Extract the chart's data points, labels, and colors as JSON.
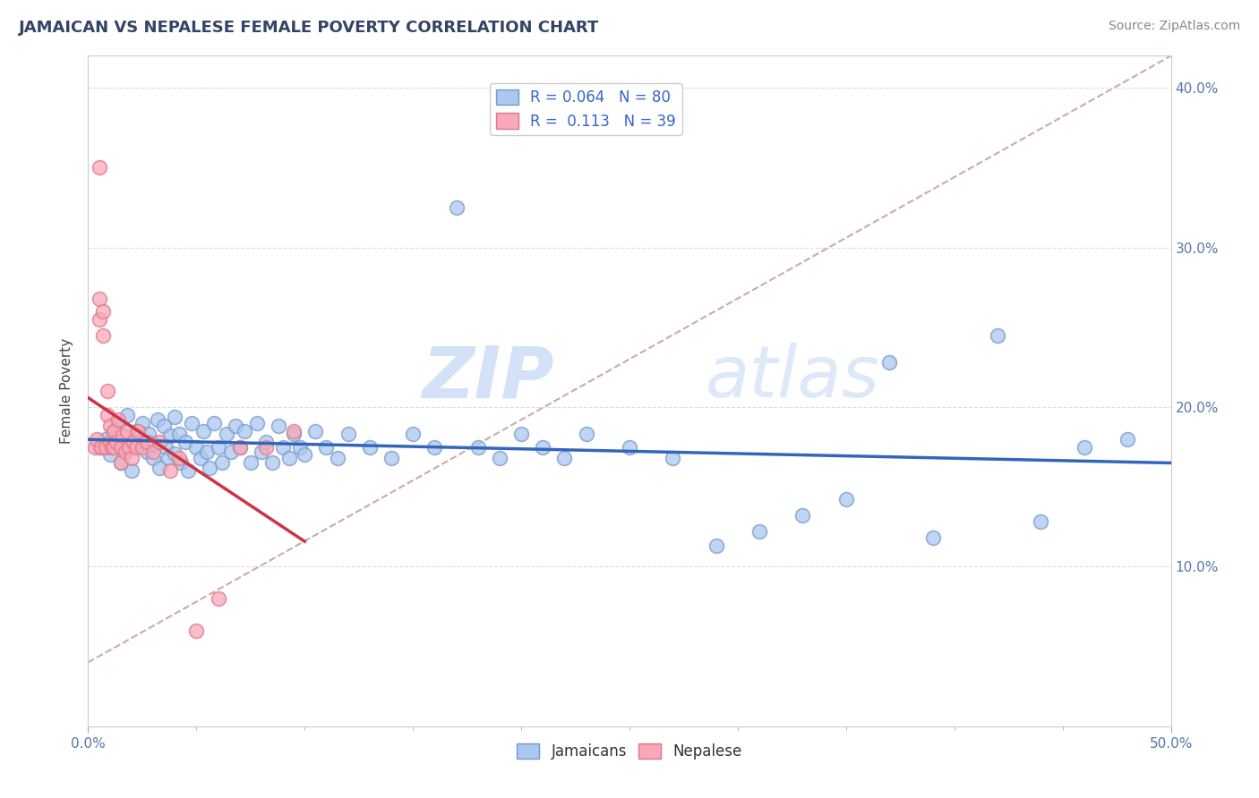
{
  "title": "JAMAICAN VS NEPALESE FEMALE POVERTY CORRELATION CHART",
  "source": "Source: ZipAtlas.com",
  "ylabel": "Female Poverty",
  "xlim": [
    0.0,
    0.5
  ],
  "ylim": [
    0.0,
    0.42
  ],
  "xticks": [
    0.0,
    0.05,
    0.1,
    0.15,
    0.2,
    0.25,
    0.3,
    0.35,
    0.4,
    0.45,
    0.5
  ],
  "yticks": [
    0.0,
    0.1,
    0.2,
    0.3,
    0.4
  ],
  "jamaican_color": "#aac8f0",
  "jamaican_edge": "#7799cc",
  "nepalese_color": "#f8a8b8",
  "nepalese_edge": "#dd7788",
  "trend_jamaican_color": "#3366bb",
  "trend_nepalese_color": "#cc3344",
  "trend_dashed_color": "#ccaaaa",
  "R_jamaican": 0.064,
  "N_jamaican": 80,
  "R_nepalese": 0.113,
  "N_nepalese": 39,
  "watermark_zip": "ZIP",
  "watermark_atlas": "atlas",
  "legend_R_j": "R = 0.064",
  "legend_N_j": "N = 80",
  "legend_R_n": "R =  0.113",
  "legend_N_n": "N = 39",
  "label_jamaicans": "Jamaicans",
  "label_nepalese": "Nepalese",
  "jamaican_x": [
    0.005,
    0.008,
    0.01,
    0.012,
    0.014,
    0.015,
    0.016,
    0.018,
    0.02,
    0.022,
    0.024,
    0.025,
    0.027,
    0.028,
    0.03,
    0.03,
    0.032,
    0.033,
    0.035,
    0.036,
    0.037,
    0.038,
    0.04,
    0.04,
    0.042,
    0.043,
    0.045,
    0.046,
    0.048,
    0.05,
    0.052,
    0.053,
    0.055,
    0.056,
    0.058,
    0.06,
    0.062,
    0.064,
    0.066,
    0.068,
    0.07,
    0.072,
    0.075,
    0.078,
    0.08,
    0.082,
    0.085,
    0.088,
    0.09,
    0.093,
    0.095,
    0.098,
    0.1,
    0.105,
    0.11,
    0.115,
    0.12,
    0.13,
    0.14,
    0.15,
    0.16,
    0.17,
    0.18,
    0.19,
    0.2,
    0.21,
    0.22,
    0.23,
    0.25,
    0.27,
    0.29,
    0.31,
    0.33,
    0.35,
    0.37,
    0.39,
    0.42,
    0.44,
    0.46,
    0.48
  ],
  "jamaican_y": [
    0.175,
    0.18,
    0.17,
    0.185,
    0.19,
    0.165,
    0.175,
    0.195,
    0.16,
    0.185,
    0.178,
    0.19,
    0.172,
    0.183,
    0.177,
    0.168,
    0.192,
    0.162,
    0.188,
    0.175,
    0.168,
    0.182,
    0.194,
    0.171,
    0.183,
    0.165,
    0.178,
    0.16,
    0.19,
    0.175,
    0.168,
    0.185,
    0.172,
    0.162,
    0.19,
    0.175,
    0.165,
    0.183,
    0.172,
    0.188,
    0.175,
    0.185,
    0.165,
    0.19,
    0.172,
    0.178,
    0.165,
    0.188,
    0.175,
    0.168,
    0.183,
    0.175,
    0.17,
    0.185,
    0.175,
    0.168,
    0.183,
    0.175,
    0.168,
    0.183,
    0.175,
    0.325,
    0.175,
    0.168,
    0.183,
    0.175,
    0.168,
    0.183,
    0.175,
    0.168,
    0.113,
    0.122,
    0.132,
    0.142,
    0.228,
    0.118,
    0.245,
    0.128,
    0.175,
    0.18
  ],
  "nepalese_x": [
    0.003,
    0.004,
    0.005,
    0.005,
    0.005,
    0.006,
    0.007,
    0.007,
    0.008,
    0.009,
    0.009,
    0.01,
    0.01,
    0.011,
    0.012,
    0.012,
    0.013,
    0.014,
    0.015,
    0.015,
    0.016,
    0.017,
    0.018,
    0.019,
    0.02,
    0.021,
    0.022,
    0.023,
    0.025,
    0.027,
    0.03,
    0.033,
    0.038,
    0.042,
    0.05,
    0.06,
    0.07,
    0.082,
    0.095
  ],
  "nepalese_y": [
    0.175,
    0.18,
    0.35,
    0.268,
    0.255,
    0.175,
    0.26,
    0.245,
    0.175,
    0.21,
    0.195,
    0.178,
    0.188,
    0.175,
    0.185,
    0.175,
    0.178,
    0.192,
    0.165,
    0.175,
    0.182,
    0.172,
    0.185,
    0.175,
    0.168,
    0.178,
    0.175,
    0.185,
    0.175,
    0.178,
    0.172,
    0.178,
    0.16,
    0.168,
    0.06,
    0.08,
    0.175,
    0.175,
    0.185
  ]
}
